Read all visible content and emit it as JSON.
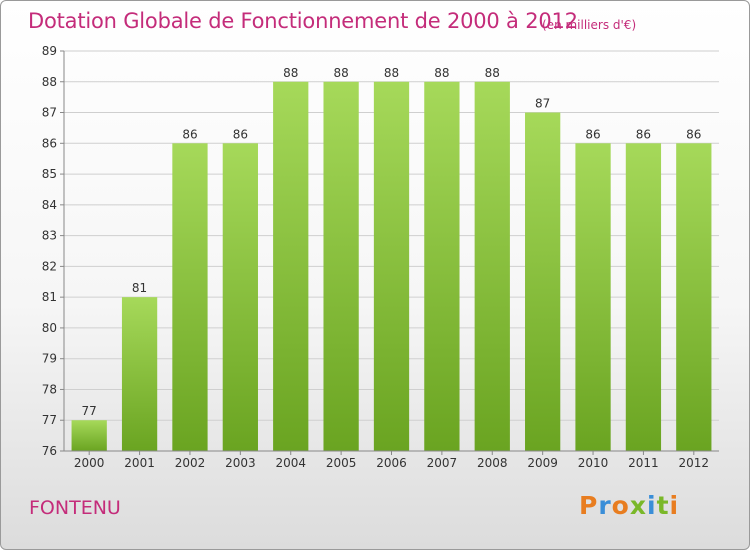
{
  "header": {
    "title": "Dotation Globale de Fonctionnement de 2000 à 2012",
    "unit": "(en milliers d'€)"
  },
  "commune": "FONTENU",
  "logo": {
    "text": "Proxiti",
    "letter_colors": [
      "#e87d20",
      "#3a8ed8",
      "#e87d20",
      "#7ab829",
      "#3a8ed8",
      "#7ab829",
      "#e87d20"
    ]
  },
  "colors": {
    "bar_top": "#a6d95a",
    "bar_bottom": "#6aa421",
    "grid": "#cfcfcf",
    "title": "#c42c7a"
  },
  "chart_data": {
    "type": "bar",
    "title": "Dotation Globale de Fonctionnement de 2000 à 2012",
    "subtitle": "(en milliers d'€)",
    "categories": [
      "2000",
      "2001",
      "2002",
      "2003",
      "2004",
      "2005",
      "2006",
      "2007",
      "2008",
      "2009",
      "2010",
      "2011",
      "2012"
    ],
    "values": [
      77,
      81,
      86,
      86,
      88,
      88,
      88,
      88,
      88,
      87,
      86,
      86,
      86
    ],
    "ylim": [
      76,
      89
    ],
    "yticks": [
      76,
      77,
      78,
      79,
      80,
      81,
      82,
      83,
      84,
      85,
      86,
      87,
      88,
      89
    ],
    "grid": "horizontal",
    "xlabel": "",
    "ylabel": ""
  }
}
